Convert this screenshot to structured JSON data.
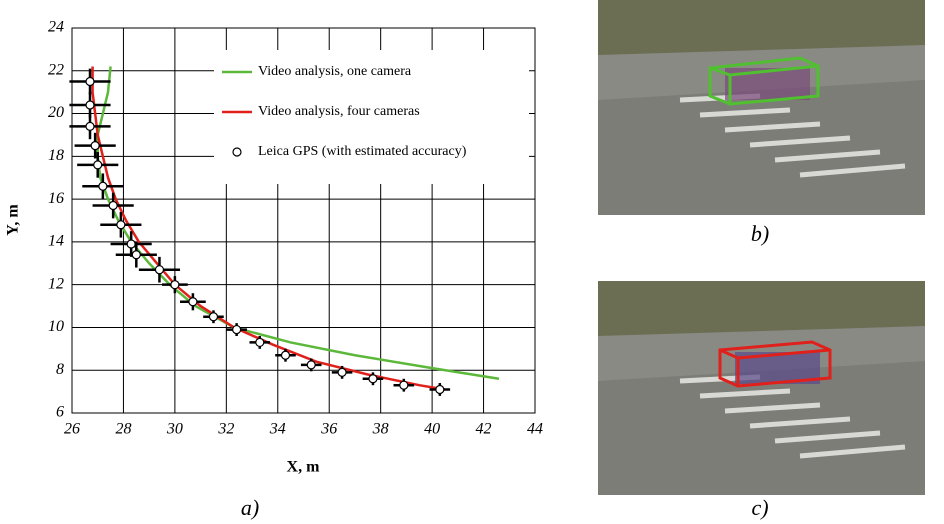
{
  "chart_data": {
    "type": "line",
    "xlabel": "X, m",
    "ylabel": "Y, m",
    "xlim": [
      26,
      44
    ],
    "ylim": [
      6,
      24
    ],
    "xticks": [
      26,
      28,
      30,
      32,
      34,
      36,
      38,
      40,
      42,
      44
    ],
    "yticks": [
      6,
      8,
      10,
      12,
      14,
      16,
      18,
      20,
      22,
      24
    ],
    "grid": true,
    "legend": "upper right",
    "annotations": [
      "a)",
      "b)",
      "c)"
    ],
    "series": [
      {
        "name": "Video analysis, one camera",
        "type": "line",
        "color": "#5cb83a",
        "x": [
          27.5,
          27.4,
          27.2,
          27.0,
          27.0,
          27.1,
          27.4,
          27.8,
          28.3,
          29.0,
          29.8,
          30.8,
          32.3,
          34.5,
          37.0,
          40.0,
          42.6
        ],
        "values": [
          22.2,
          21,
          20,
          19,
          18,
          17,
          16,
          15,
          14,
          13,
          12,
          11,
          10,
          9.3,
          8.7,
          8.1,
          7.6
        ]
      },
      {
        "name": "Video analysis, four cameras",
        "type": "line",
        "color": "#e0201b",
        "x": [
          26.8,
          26.8,
          26.9,
          27.0,
          27.2,
          27.4,
          27.7,
          28.1,
          28.6,
          29.3,
          30.0,
          31.0,
          32.3,
          33.8,
          35.5,
          37.5,
          39.5,
          40.5
        ],
        "values": [
          22.2,
          21,
          20,
          19,
          18,
          17,
          16,
          15,
          14,
          13,
          12,
          11,
          10,
          9.2,
          8.4,
          7.8,
          7.3,
          7.1
        ]
      },
      {
        "name": "Leica GPS (with estimated accuracy)",
        "type": "scatter",
        "color": "#000000",
        "x": [
          26.7,
          26.7,
          26.7,
          26.9,
          27.0,
          27.2,
          27.6,
          27.9,
          28.3,
          28.5,
          29.4,
          30.0,
          30.7,
          31.5,
          32.4,
          33.3,
          34.3,
          35.3,
          36.5,
          37.7,
          38.9,
          40.3
        ],
        "values": [
          21.5,
          20.4,
          19.4,
          18.5,
          17.6,
          16.6,
          15.7,
          14.8,
          13.9,
          13.4,
          12.7,
          12.0,
          11.2,
          10.5,
          9.9,
          9.3,
          8.7,
          8.25,
          7.9,
          7.6,
          7.3,
          7.1
        ],
        "xerr": [
          0.8,
          0.8,
          0.8,
          0.8,
          0.8,
          0.8,
          0.8,
          0.8,
          0.8,
          0.8,
          0.8,
          0.5,
          0.5,
          0.4,
          0.4,
          0.4,
          0.4,
          0.4,
          0.4,
          0.4,
          0.4,
          0.4
        ],
        "yerr": [
          0.6,
          0.6,
          0.6,
          0.6,
          0.6,
          0.6,
          0.6,
          0.6,
          0.6,
          0.6,
          0.6,
          0.4,
          0.4,
          0.3,
          0.3,
          0.3,
          0.3,
          0.3,
          0.3,
          0.3,
          0.3,
          0.3
        ]
      }
    ]
  }
}
